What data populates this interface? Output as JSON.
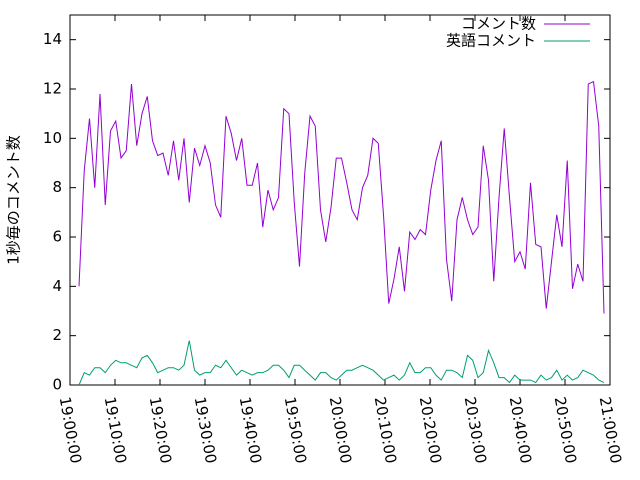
{
  "chart_data": {
    "type": "line",
    "ylabel": "1秒毎のコメント数",
    "xlim": [
      "19:00:00",
      "21:00:00"
    ],
    "xticks": [
      "19:00:00",
      "19:10:00",
      "19:20:00",
      "19:30:00",
      "19:40:00",
      "19:50:00",
      "20:00:00",
      "20:10:00",
      "20:20:00",
      "20:30:00",
      "20:40:00",
      "20:50:00",
      "21:00:00"
    ],
    "ylim": [
      0,
      15
    ],
    "yticks": [
      0,
      2,
      4,
      6,
      8,
      10,
      12,
      14
    ],
    "legend": "upper right",
    "x": [
      "19:02:00",
      "19:03:10",
      "19:04:20",
      "19:05:30",
      "19:06:40",
      "19:07:50",
      "19:09:00",
      "19:10:10",
      "19:11:20",
      "19:12:30",
      "19:13:40",
      "19:14:50",
      "19:16:00",
      "19:17:10",
      "19:18:20",
      "19:19:30",
      "19:20:40",
      "19:21:50",
      "19:23:00",
      "19:24:10",
      "19:25:20",
      "19:26:30",
      "19:27:40",
      "19:28:50",
      "19:30:00",
      "19:31:10",
      "19:32:20",
      "19:33:30",
      "19:34:40",
      "19:35:50",
      "19:37:00",
      "19:38:10",
      "19:39:20",
      "19:40:30",
      "19:41:40",
      "19:42:50",
      "19:44:00",
      "19:45:10",
      "19:46:20",
      "19:47:30",
      "19:48:40",
      "19:49:50",
      "19:51:00",
      "19:52:10",
      "19:53:20",
      "19:54:30",
      "19:55:40",
      "19:56:50",
      "19:58:00",
      "19:59:10",
      "20:00:20",
      "20:01:30",
      "20:02:40",
      "20:03:50",
      "20:05:00",
      "20:06:10",
      "20:07:20",
      "20:08:30",
      "20:09:40",
      "20:10:50",
      "20:12:00",
      "20:13:10",
      "20:14:20",
      "20:15:30",
      "20:16:40",
      "20:17:50",
      "20:19:00",
      "20:20:10",
      "20:21:20",
      "20:22:30",
      "20:23:40",
      "20:24:50",
      "20:26:00",
      "20:27:10",
      "20:28:20",
      "20:29:30",
      "20:30:40",
      "20:31:50",
      "20:33:00",
      "20:34:10",
      "20:35:20",
      "20:36:30",
      "20:37:40",
      "20:38:50",
      "20:40:00",
      "20:41:10",
      "20:42:20",
      "20:43:30",
      "20:44:40",
      "20:45:50",
      "20:47:00",
      "20:48:10",
      "20:49:20",
      "20:50:30",
      "20:51:40",
      "20:52:50",
      "20:54:00",
      "20:55:10",
      "20:56:20",
      "20:57:30",
      "20:58:40"
    ],
    "series": [
      {
        "name": "コメント数",
        "color": "#9400d3",
        "values": [
          4.0,
          8.7,
          10.8,
          8.0,
          11.8,
          7.3,
          10.3,
          10.7,
          9.2,
          9.5,
          12.2,
          9.7,
          11.0,
          11.7,
          9.9,
          9.3,
          9.4,
          8.5,
          9.9,
          8.3,
          10.0,
          7.4,
          9.6,
          8.9,
          9.7,
          9.0,
          7.3,
          6.8,
          10.9,
          10.2,
          9.1,
          10.0,
          8.1,
          8.1,
          9.0,
          6.4,
          7.9,
          7.1,
          7.6,
          11.2,
          11.0,
          7.4,
          4.8,
          8.6,
          10.9,
          10.5,
          7.1,
          5.8,
          7.2,
          9.2,
          9.2,
          8.2,
          7.1,
          6.7,
          8.0,
          8.5,
          10.0,
          9.8,
          6.9,
          3.3,
          4.3,
          5.6,
          3.8,
          6.2,
          5.9,
          6.3,
          6.1,
          7.9,
          9.1,
          9.9,
          5.1,
          3.4,
          6.7,
          7.6,
          6.7,
          6.1,
          6.4,
          9.7,
          8.3,
          4.2,
          7.6,
          10.4,
          7.6,
          5.0,
          5.4,
          4.7,
          8.2,
          5.7,
          5.6,
          3.1,
          5.0,
          6.9,
          5.6,
          9.1,
          3.9,
          4.9,
          4.2,
          12.2,
          12.3,
          10.5,
          2.9
        ]
      },
      {
        "name": "英語コメント",
        "color": "#009e73",
        "values": [
          0.0,
          0.5,
          0.4,
          0.7,
          0.7,
          0.5,
          0.8,
          1.0,
          0.9,
          0.9,
          0.8,
          0.7,
          1.1,
          1.2,
          0.9,
          0.5,
          0.6,
          0.7,
          0.7,
          0.6,
          0.8,
          1.8,
          0.6,
          0.4,
          0.5,
          0.5,
          0.8,
          0.7,
          1.0,
          0.7,
          0.4,
          0.6,
          0.5,
          0.4,
          0.5,
          0.5,
          0.6,
          0.8,
          0.8,
          0.6,
          0.3,
          0.8,
          0.8,
          0.6,
          0.4,
          0.2,
          0.5,
          0.5,
          0.3,
          0.2,
          0.4,
          0.6,
          0.6,
          0.7,
          0.8,
          0.7,
          0.6,
          0.4,
          0.2,
          0.3,
          0.4,
          0.2,
          0.4,
          0.9,
          0.5,
          0.5,
          0.7,
          0.7,
          0.4,
          0.2,
          0.6,
          0.6,
          0.5,
          0.3,
          1.2,
          1.0,
          0.3,
          0.5,
          1.4,
          0.9,
          0.3,
          0.3,
          0.1,
          0.4,
          0.2,
          0.2,
          0.2,
          0.1,
          0.4,
          0.2,
          0.3,
          0.6,
          0.2,
          0.4,
          0.2,
          0.3,
          0.6,
          0.5,
          0.4,
          0.2,
          0.1
        ]
      }
    ]
  }
}
